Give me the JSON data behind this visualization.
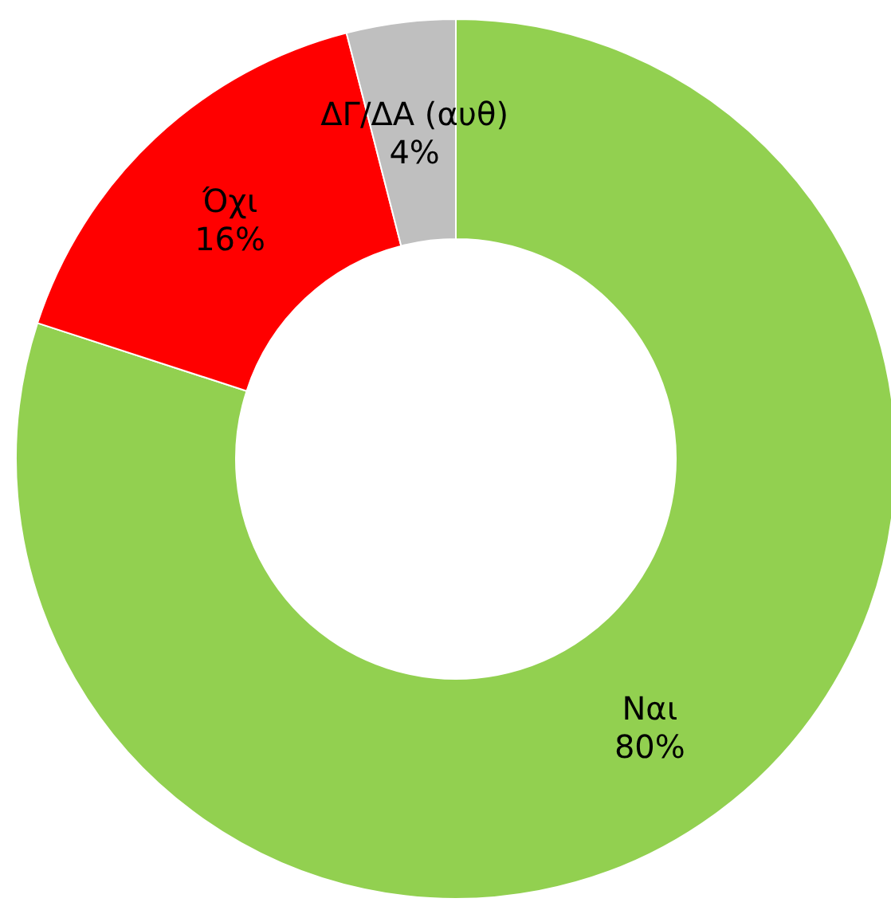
{
  "chart_data": {
    "type": "donut",
    "categories": [
      "Ναι",
      "Όχι",
      "ΔΓ/ΔΑ (αυθ)"
    ],
    "values": [
      80,
      16,
      4
    ],
    "colors": [
      "#92d050",
      "#ff0000",
      "#bfbfbf"
    ],
    "value_labels": [
      "80%",
      "16%",
      "4%"
    ],
    "legend": false
  }
}
